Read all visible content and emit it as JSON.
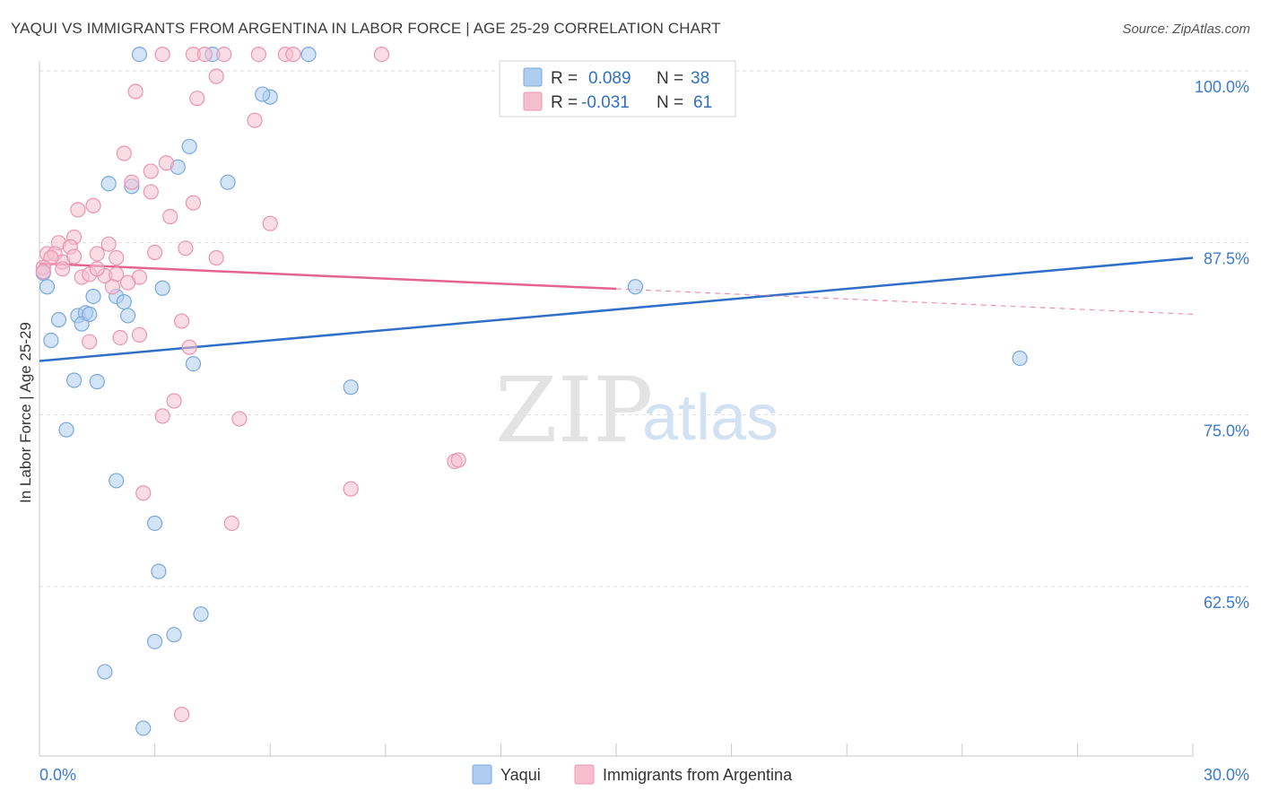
{
  "header": {
    "title": "YAQUI VS IMMIGRANTS FROM ARGENTINA IN LABOR FORCE | AGE 25-29 CORRELATION CHART",
    "source": "Source: ZipAtlas.com"
  },
  "watermark": {
    "zip": "ZIP",
    "atlas": "atlas"
  },
  "legend": {
    "rows": [
      {
        "r_label": "R =",
        "r_value": "0.089",
        "n_label": "N =",
        "n_value": "38"
      },
      {
        "r_label": "R =",
        "r_value": "-0.031",
        "n_label": "N =",
        "n_value": "61"
      }
    ]
  },
  "bottom_legend": {
    "series1": "Yaqui",
    "series2": "Immigrants from Argentina"
  },
  "colors": {
    "blue_fill": "#aecdf0",
    "blue_stroke": "#7aa8dc",
    "blue_line": "#2f6fc8",
    "pink_fill": "#f5bfd0",
    "pink_stroke": "#ec94b2",
    "pink_line": "#e2648f",
    "tick_color": "#3d7ac9"
  },
  "chart_data": {
    "type": "scatter",
    "title": "YAQUI VS IMMIGRANTS FROM ARGENTINA IN LABOR FORCE | AGE 25-29 CORRELATION CHART",
    "xlabel": "",
    "ylabel": "In Labor Force | Age 25-29",
    "xlim": [
      0,
      30
    ],
    "ylim": [
      51,
      100
    ],
    "y_ticks": [
      62.5,
      75.0,
      87.5,
      100.0
    ],
    "y_tick_labels": [
      "62.5%",
      "75.0%",
      "87.5%",
      "100.0%"
    ],
    "x_tick_labels": [
      "0.0%",
      "30.0%"
    ],
    "series": [
      {
        "name": "Yaqui",
        "R": 0.089,
        "N": 38,
        "trend": {
          "x": [
            0,
            30
          ],
          "y": [
            78.9,
            86.4
          ],
          "dashed_from": null
        },
        "points": [
          [
            2.6,
            101.2
          ],
          [
            4.5,
            101.2
          ],
          [
            7.0,
            101.2
          ],
          [
            6.0,
            98.1
          ],
          [
            5.8,
            98.3
          ],
          [
            3.9,
            94.5
          ],
          [
            3.6,
            93.0
          ],
          [
            4.9,
            91.9
          ],
          [
            1.8,
            91.8
          ],
          [
            2.4,
            91.6
          ],
          [
            0.1,
            85.3
          ],
          [
            0.2,
            84.3
          ],
          [
            3.2,
            84.2
          ],
          [
            1.4,
            83.6
          ],
          [
            2.0,
            83.6
          ],
          [
            2.2,
            83.2
          ],
          [
            0.5,
            81.9
          ],
          [
            1.0,
            82.2
          ],
          [
            1.2,
            82.4
          ],
          [
            1.1,
            81.6
          ],
          [
            2.3,
            82.2
          ],
          [
            0.3,
            80.4
          ],
          [
            0.9,
            77.5
          ],
          [
            1.5,
            77.4
          ],
          [
            4.0,
            78.7
          ],
          [
            8.1,
            77.0
          ],
          [
            0.7,
            73.9
          ],
          [
            2.0,
            70.2
          ],
          [
            3.0,
            67.1
          ],
          [
            3.1,
            63.6
          ],
          [
            4.2,
            60.5
          ],
          [
            3.5,
            59.0
          ],
          [
            3.0,
            58.5
          ],
          [
            1.7,
            56.3
          ],
          [
            2.7,
            52.2
          ],
          [
            15.5,
            84.3
          ],
          [
            25.5,
            79.1
          ],
          [
            1.3,
            82.3
          ]
        ]
      },
      {
        "name": "Immigrants from Argentina",
        "R": -0.031,
        "N": 61,
        "trend": {
          "x": [
            0,
            30
          ],
          "y": [
            86.0,
            82.3
          ],
          "dashed_from": 15.0
        },
        "points": [
          [
            3.2,
            101.2
          ],
          [
            4.0,
            101.2
          ],
          [
            4.3,
            101.2
          ],
          [
            4.8,
            101.2
          ],
          [
            5.7,
            101.2
          ],
          [
            6.4,
            101.2
          ],
          [
            6.6,
            101.2
          ],
          [
            8.9,
            101.2
          ],
          [
            4.6,
            99.6
          ],
          [
            2.5,
            98.5
          ],
          [
            4.1,
            98.0
          ],
          [
            5.6,
            96.4
          ],
          [
            2.2,
            94.0
          ],
          [
            3.3,
            93.3
          ],
          [
            2.9,
            92.7
          ],
          [
            2.4,
            91.9
          ],
          [
            2.9,
            91.2
          ],
          [
            4.0,
            90.4
          ],
          [
            1.4,
            90.2
          ],
          [
            1.0,
            89.9
          ],
          [
            3.4,
            89.4
          ],
          [
            6.0,
            88.9
          ],
          [
            0.9,
            87.9
          ],
          [
            0.5,
            87.5
          ],
          [
            1.8,
            87.4
          ],
          [
            0.8,
            87.2
          ],
          [
            0.2,
            86.7
          ],
          [
            0.4,
            86.7
          ],
          [
            1.5,
            86.7
          ],
          [
            3.0,
            86.8
          ],
          [
            3.8,
            87.1
          ],
          [
            4.6,
            86.4
          ],
          [
            0.6,
            86.1
          ],
          [
            0.3,
            86.4
          ],
          [
            0.1,
            85.7
          ],
          [
            0.6,
            85.6
          ],
          [
            1.1,
            85.0
          ],
          [
            1.3,
            85.2
          ],
          [
            1.7,
            85.1
          ],
          [
            2.0,
            85.2
          ],
          [
            2.6,
            85.0
          ],
          [
            2.3,
            84.6
          ],
          [
            1.9,
            84.3
          ],
          [
            1.5,
            85.6
          ],
          [
            2.0,
            86.4
          ],
          [
            3.7,
            81.8
          ],
          [
            2.6,
            80.8
          ],
          [
            2.1,
            80.6
          ],
          [
            1.3,
            80.3
          ],
          [
            3.9,
            79.9
          ],
          [
            3.5,
            76.0
          ],
          [
            3.2,
            74.9
          ],
          [
            5.2,
            74.7
          ],
          [
            10.8,
            71.6
          ],
          [
            10.9,
            71.7
          ],
          [
            8.1,
            69.6
          ],
          [
            2.7,
            69.3
          ],
          [
            5.0,
            67.1
          ],
          [
            3.7,
            53.2
          ],
          [
            0.1,
            85.4
          ],
          [
            0.9,
            86.5
          ]
        ]
      }
    ]
  }
}
